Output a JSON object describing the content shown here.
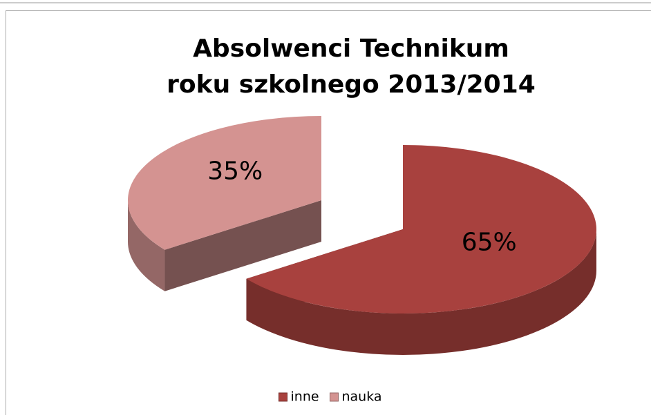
{
  "chart_data": {
    "type": "pie3d",
    "title": [
      "Absolwenci  Technikum",
      "roku szkolnego 2013/2014"
    ],
    "categories": [
      "inne",
      "nauka"
    ],
    "values": [
      65,
      35
    ],
    "value_labels": [
      "65%",
      "35%"
    ],
    "colors": [
      "#a8413e",
      "#d49391"
    ],
    "legend": "bottom"
  }
}
